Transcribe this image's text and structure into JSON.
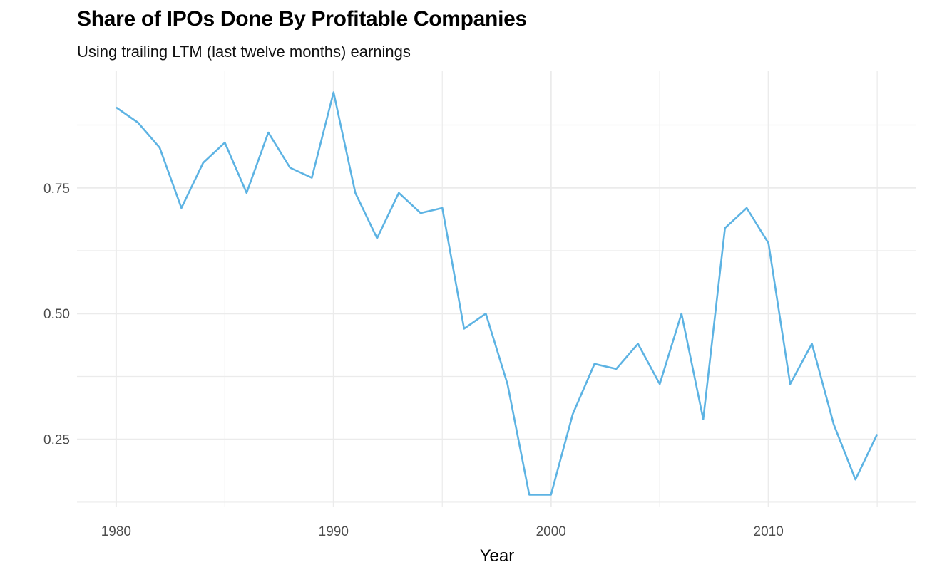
{
  "chart_data": {
    "type": "line",
    "title": "Share of IPOs Done By Profitable Companies",
    "subtitle": "Using trailing LTM (last twelve months) earnings",
    "xlabel": "Year",
    "ylabel": "",
    "xlim": [
      1978.2,
      2016.8
    ],
    "ylim": [
      0.115,
      0.982
    ],
    "x_ticks": [
      1980,
      1990,
      2000,
      2010
    ],
    "x_tick_labels": [
      "1980",
      "1990",
      "2000",
      "2010"
    ],
    "y_ticks": [
      0.25,
      0.5,
      0.75
    ],
    "y_tick_labels": [
      "0.25",
      "0.50",
      "0.75"
    ],
    "grid": true,
    "line_color": "#5DB3E3",
    "series": [
      {
        "x": [
          1980,
          1981,
          1982,
          1983,
          1984,
          1985,
          1986,
          1987,
          1988,
          1989,
          1990,
          1991,
          1992,
          1993,
          1994,
          1995,
          1996,
          1997,
          1998,
          1999,
          2000,
          2001,
          2002,
          2003,
          2004,
          2005,
          2006,
          2007,
          2008,
          2009,
          2010,
          2011,
          2012,
          2013,
          2014,
          2015
        ],
        "y": [
          0.91,
          0.88,
          0.83,
          0.71,
          0.8,
          0.84,
          0.74,
          0.86,
          0.79,
          0.77,
          0.94,
          0.74,
          0.65,
          0.74,
          0.7,
          0.71,
          0.47,
          0.5,
          0.36,
          0.14,
          0.14,
          0.3,
          0.4,
          0.39,
          0.44,
          0.36,
          0.5,
          0.29,
          0.67,
          0.71,
          0.64,
          0.36,
          0.44,
          0.28,
          0.17,
          0.26
        ]
      }
    ]
  }
}
